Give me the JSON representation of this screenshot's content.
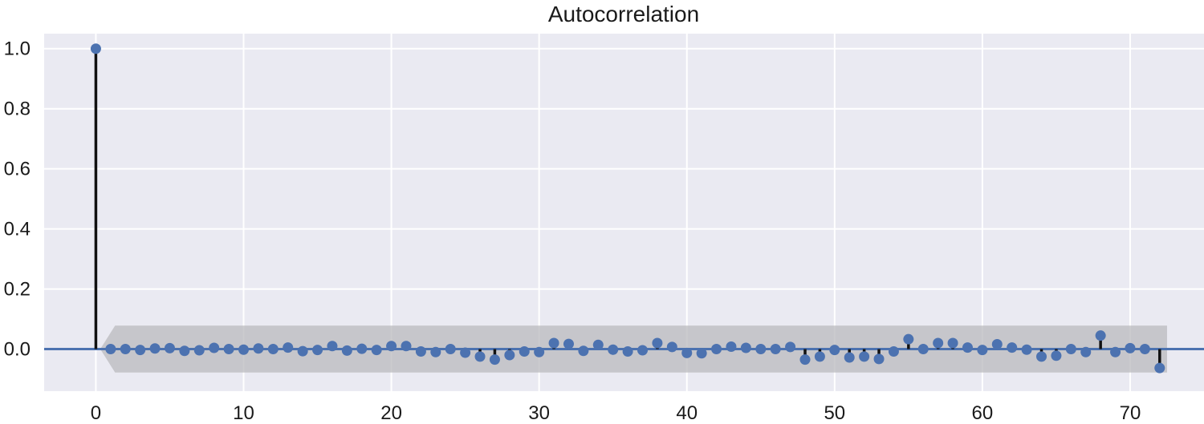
{
  "chart_data": {
    "type": "stem",
    "title": "Autocorrelation",
    "xlabel": "",
    "ylabel": "",
    "xlim": [
      -3.5,
      75
    ],
    "ylim": [
      -0.14,
      1.05
    ],
    "x_ticks": [
      0,
      10,
      20,
      30,
      40,
      50,
      60,
      70
    ],
    "x_tick_labels": [
      "0",
      "10",
      "20",
      "30",
      "40",
      "50",
      "60",
      "70"
    ],
    "y_ticks": [
      0.0,
      0.2,
      0.4,
      0.6,
      0.8,
      1.0
    ],
    "y_tick_labels": [
      "0.0",
      "0.2",
      "0.4",
      "0.6",
      "0.8",
      "1.0"
    ],
    "grid": true,
    "lags": [
      0,
      1,
      2,
      3,
      4,
      5,
      6,
      7,
      8,
      9,
      10,
      11,
      12,
      13,
      14,
      15,
      16,
      17,
      18,
      19,
      20,
      21,
      22,
      23,
      24,
      25,
      26,
      27,
      28,
      29,
      30,
      31,
      32,
      33,
      34,
      35,
      36,
      37,
      38,
      39,
      40,
      41,
      42,
      43,
      44,
      45,
      46,
      47,
      48,
      49,
      50,
      51,
      52,
      53,
      54,
      55,
      56,
      57,
      58,
      59,
      60,
      61,
      62,
      63,
      64,
      65,
      66,
      67,
      68,
      69,
      70,
      71,
      72
    ],
    "acf": [
      1.0,
      0.0,
      0.0,
      -0.003,
      0.002,
      0.003,
      -0.006,
      -0.004,
      0.004,
      0.0,
      -0.002,
      0.002,
      0.0,
      0.005,
      -0.007,
      -0.003,
      0.01,
      -0.005,
      0.001,
      -0.003,
      0.01,
      0.01,
      -0.008,
      -0.01,
      0.0,
      -0.012,
      -0.025,
      -0.035,
      -0.02,
      -0.008,
      -0.01,
      0.02,
      0.017,
      -0.006,
      0.014,
      -0.002,
      -0.008,
      -0.004,
      0.02,
      0.007,
      -0.013,
      -0.014,
      0.0,
      0.008,
      0.004,
      0.0,
      0.0,
      0.007,
      -0.035,
      -0.025,
      -0.003,
      -0.028,
      -0.025,
      -0.033,
      -0.008,
      0.033,
      0.0,
      0.02,
      0.02,
      0.005,
      -0.003,
      0.016,
      0.005,
      -0.002,
      -0.025,
      -0.022,
      0.0,
      -0.01,
      0.045,
      -0.01,
      0.003,
      0.0,
      -0.063
    ],
    "confidence_band": {
      "x_start": 0.3,
      "x_end": 72.5,
      "half_width": 0.078
    },
    "colors": {
      "background": "#eaeaf2",
      "grid": "#ffffff",
      "marker": "#4c72b0",
      "stem": "#111111",
      "band": "#b9b9bd",
      "baseline": "#4c72b0"
    }
  }
}
